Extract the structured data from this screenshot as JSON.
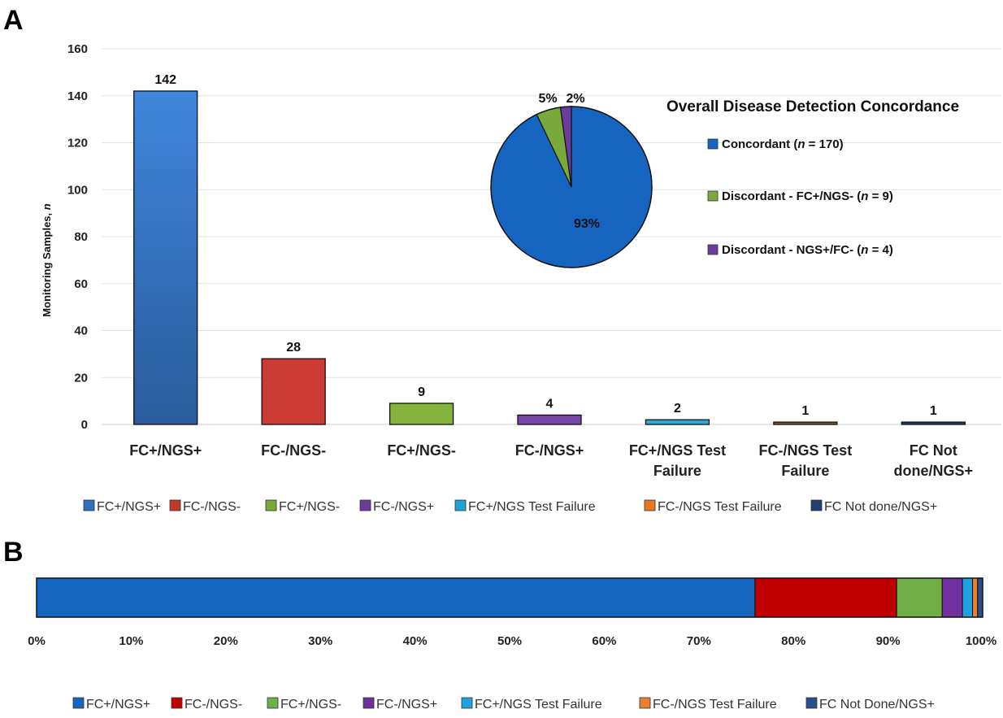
{
  "panel_a_letter": "A",
  "panel_b_letter": "B",
  "colors": {
    "FC+/NGS+": "#2f6fc0",
    "FC-/NGS-": "#c0392b",
    "FC+/NGS-": "#78a93a",
    "FC-/NGS+": "#6a3d9a",
    "FC+/NGS Test Failure": "#1fa2d6",
    "FC-/NGS Test Failure": "#e87722",
    "FC Not done/NGS+": "#1f3f73"
  },
  "chart_data": [
    {
      "type": "bar",
      "panel": "A",
      "ylabel_parts": [
        "Monitoring Samples, ",
        "n"
      ],
      "ylim": [
        0,
        160
      ],
      "yticks": [
        0,
        20,
        40,
        60,
        80,
        100,
        120,
        140,
        160
      ],
      "grid": true,
      "categories": [
        [
          "FC+/NGS+"
        ],
        [
          "FC-/NGS-"
        ],
        [
          "FC+/NGS-"
        ],
        [
          "FC-/NGS+"
        ],
        [
          "FC+/NGS Test",
          "Failure"
        ],
        [
          "FC-/NGS Test",
          "Failure"
        ],
        [
          "FC Not",
          "done/NGS+"
        ]
      ],
      "values": [
        142,
        28,
        9,
        4,
        2,
        1,
        1
      ],
      "bar_colors": [
        "#3a7dd0",
        "#cc3b34",
        "#84b43c",
        "#7846a8",
        "#2ea8d8",
        "#8a5a2e",
        "#1f3f73"
      ],
      "legend_position": "bottom",
      "legend": [
        "FC+/NGS+",
        "FC-/NGS-",
        "FC+/NGS-",
        "FC-/NGS+",
        "FC+/NGS Test Failure",
        "FC-/NGS Test Failure",
        "FC Not done/NGS+"
      ],
      "legend_colors": [
        "#2f6fc0",
        "#c0392b",
        "#78a93a",
        "#6a3d9a",
        "#1fa2d6",
        "#e87722",
        "#1f3f73"
      ]
    },
    {
      "type": "pie",
      "panel": "A-inset",
      "title": "Overall Disease Detection Concordance",
      "slices": [
        {
          "label_parts": [
            "Concordant (",
            "n",
            " = 170)"
          ],
          "value": 170,
          "pct_label": "93%",
          "color": "#1565c0"
        },
        {
          "label_parts": [
            "Discordant - FC+/NGS- (",
            "n",
            " = 9)"
          ],
          "value": 9,
          "pct_label": "5%",
          "color": "#78a93a"
        },
        {
          "label_parts": [
            "Discordant - NGS+/FC- (",
            "n",
            " = 4)"
          ],
          "value": 4,
          "pct_label": "2%",
          "color": "#6a3d9a"
        }
      ],
      "legend_position": "right"
    },
    {
      "type": "bar",
      "panel": "B",
      "orientation": "horizontal-stacked-100",
      "xlim": [
        0,
        100
      ],
      "xticks": [
        "0%",
        "10%",
        "20%",
        "30%",
        "40%",
        "50%",
        "60%",
        "70%",
        "80%",
        "90%",
        "100%"
      ],
      "segments": [
        {
          "name": "FC+/NGS+",
          "value": 142,
          "color": "#1565c0"
        },
        {
          "name": "FC-/NGS-",
          "value": 28,
          "color": "#c00000"
        },
        {
          "name": "FC+/NGS-",
          "value": 9,
          "color": "#70ad47"
        },
        {
          "name": "FC-/NGS+",
          "value": 4,
          "color": "#7030a0"
        },
        {
          "name": "FC+/NGS Test Failure",
          "value": 2,
          "color": "#1fa2e0"
        },
        {
          "name": "FC-/NGS Test Failure",
          "value": 1,
          "color": "#ed7d31"
        },
        {
          "name": "FC Not Done/NGS+",
          "value": 1,
          "color": "#2a4f8f"
        }
      ],
      "legend_position": "bottom",
      "legend": [
        "FC+/NGS+",
        "FC-/NGS-",
        "FC+/NGS-",
        "FC-/NGS+",
        "FC+/NGS Test Failure",
        "FC-/NGS Test Failure",
        "FC Not Done/NGS+"
      ]
    }
  ]
}
